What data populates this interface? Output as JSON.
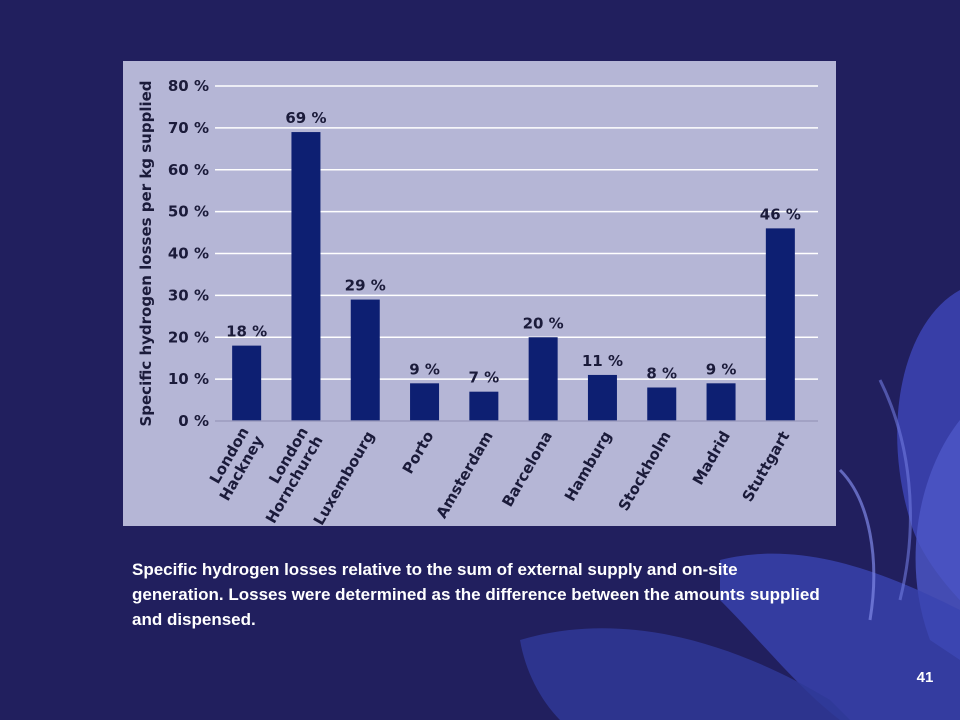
{
  "slide": {
    "caption": "Specific hydrogen losses relative to the sum of external supply and on-site generation. Losses were determined as the difference between the amounts supplied and dispensed.",
    "page_number": "41"
  },
  "colors": {
    "background": "#211f5e",
    "panel": "#b5b6d6",
    "bar": "#0d1f72",
    "grid": "#ffffff",
    "text": "#1b1b3a",
    "flower": "#3c44b4"
  },
  "chart_data": {
    "type": "bar",
    "ylabel": "Specific hydrogen losses per kg supplied",
    "xlabel": "",
    "ylim": [
      0,
      80
    ],
    "yticks": [
      0,
      10,
      20,
      30,
      40,
      50,
      60,
      70,
      80
    ],
    "ytick_labels": [
      "0 %",
      "10 %",
      "20 %",
      "30 %",
      "40 %",
      "50 %",
      "60 %",
      "70 %",
      "80 %"
    ],
    "grid": true,
    "categories": [
      [
        "London",
        "Hackney"
      ],
      [
        "London",
        "Hornchurch"
      ],
      [
        "Luxembourg"
      ],
      [
        "Porto"
      ],
      [
        "Amsterdam"
      ],
      [
        "Barcelona"
      ],
      [
        "Hamburg"
      ],
      [
        "Stockholm"
      ],
      [
        "Madrid"
      ],
      [
        "Stuttgart"
      ]
    ],
    "values": [
      18,
      69,
      29,
      9,
      7,
      20,
      11,
      8,
      9,
      46
    ],
    "value_labels": [
      "18 %",
      "69 %",
      "29 %",
      "9 %",
      "7 %",
      "20 %",
      "11 %",
      "8 %",
      "9 %",
      "46 %"
    ]
  }
}
